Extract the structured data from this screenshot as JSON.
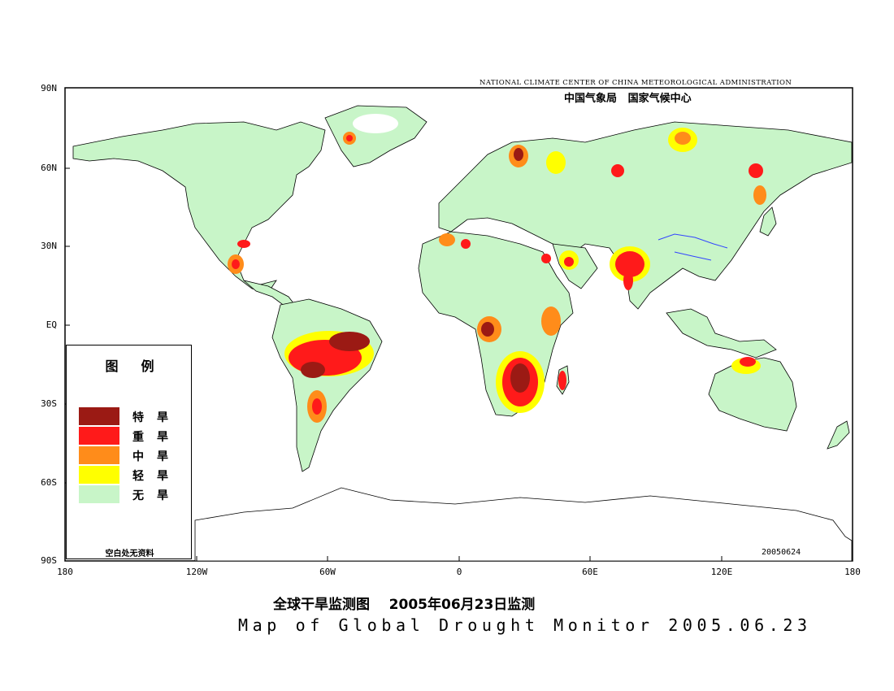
{
  "header": {
    "org_en": "NATIONAL CLIMATE CENTER OF CHINA METEOROLOGICAL ADMINISTRATION",
    "org_cn": "中国气象局   国家气候中心"
  },
  "map": {
    "date_stamp": "20050624",
    "lat_labels": [
      "90N",
      "60N",
      "30N",
      "EQ",
      "30S",
      "60S",
      "90S"
    ],
    "lon_labels": [
      "180",
      "120W",
      "60W",
      "0",
      "60E",
      "120E",
      "180"
    ]
  },
  "legend": {
    "title": "图例",
    "items": [
      {
        "label": "特旱",
        "color": "#9b1a14"
      },
      {
        "label": "重旱",
        "color": "#ff1a1a"
      },
      {
        "label": "中旱",
        "color": "#ff8c1a"
      },
      {
        "label": "轻旱",
        "color": "#ffff00"
      },
      {
        "label": "无旱",
        "color": "#c8f5c8"
      }
    ],
    "note": "空白处无资料"
  },
  "titles": {
    "cn": "全球干旱监测图    2005年06月23日监测",
    "en": "Map of Global Drought Monitor 2005.06.23"
  },
  "colors": {
    "no_drought": "#c8f5c8",
    "light": "#ffff00",
    "moderate": "#ff8c1a",
    "severe": "#ff1a1a",
    "extreme": "#9b1a14",
    "river": "#3344ff"
  }
}
